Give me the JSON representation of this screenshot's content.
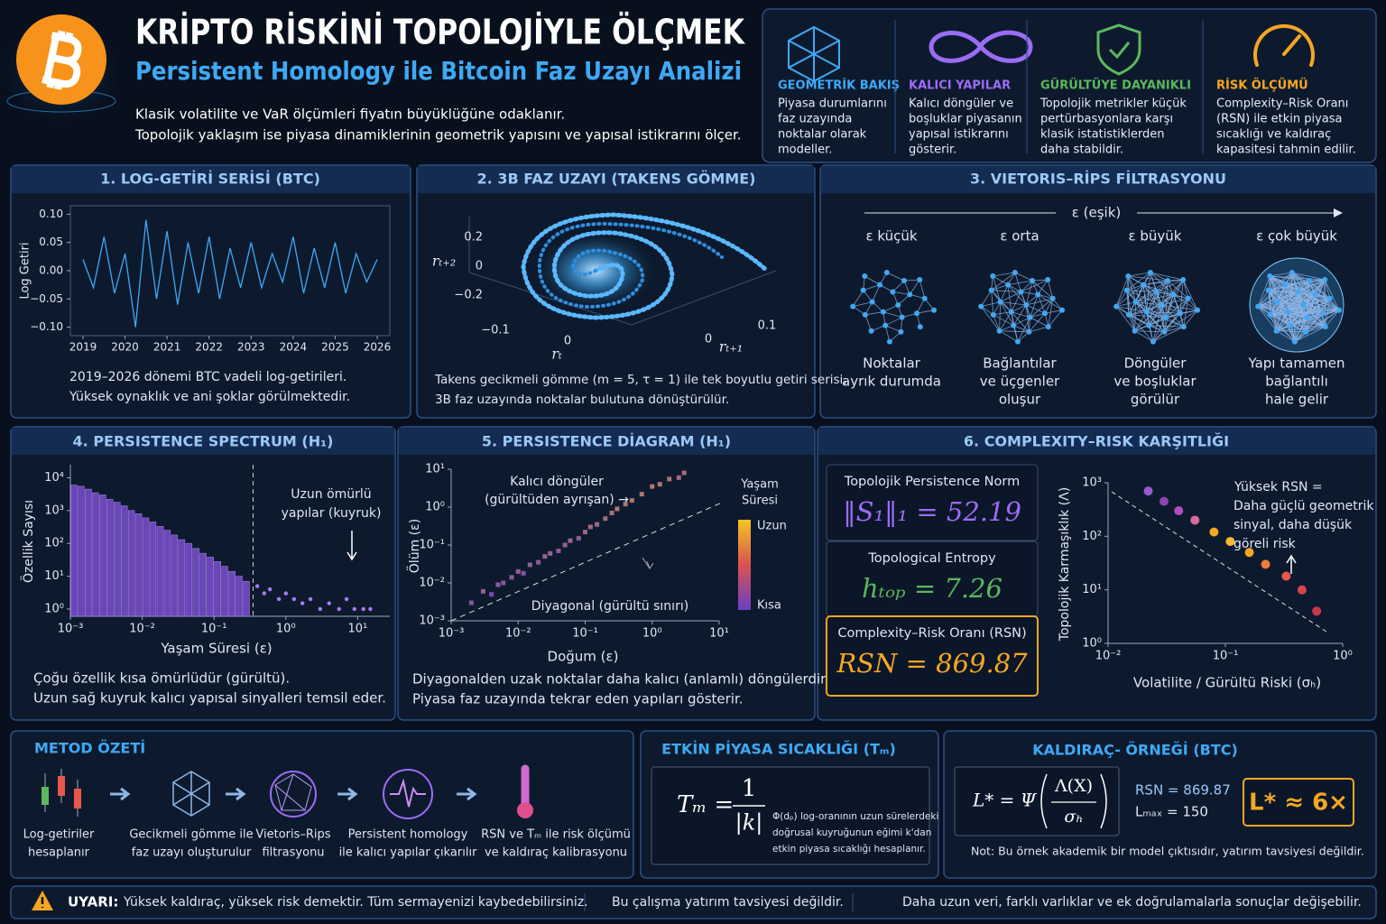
{
  "header": {
    "title": "KRİPTO RİSKİNİ TOPOLOJİYLE ÖLÇMEK",
    "subtitle": "Persistent Homology ile Bitcoin Faz Uzayı Analizi",
    "description": [
      "Klasik volatilite ve VaR ölçümleri fiyatın büyüklüğüne odaklanır.",
      "Topolojik yaklaşım ise piyasa dinamiklerinin geometrik yapısını ve yapısal istikrarını ölçer."
    ]
  },
  "features": [
    {
      "title": "GEOMETRİK BAKIŞ",
      "color": "#3fa9f5",
      "lines": [
        "Piyasa durumlarını",
        "faz uzayında",
        "noktalar olarak",
        "modeller."
      ]
    },
    {
      "title": "KALICI YAPILAR",
      "color": "#9b6cf6",
      "lines": [
        "Kalıcı döngüler ve",
        "boşluklar piyasanın",
        "yapısal istikrarını",
        "gösterir."
      ]
    },
    {
      "title": "GÜRÜLTÜYE DAYANIKLI",
      "color": "#5cb85c",
      "lines": [
        "Topolojik metrikler küçük",
        "pertürbasyonlara karşı",
        "klasik istatistiklerden",
        "daha stabildir."
      ]
    },
    {
      "title": "RİSK ÖLÇÜMÜ",
      "color": "#f5a623",
      "lines": [
        "Complexity–Risk Oranı",
        "(RSN) ile etkin piyasa",
        "sıcaklığı ve kaldıraç",
        "kapasitesi tahmin edilir."
      ]
    }
  ],
  "log_returns": {
    "type": "line",
    "title": "1. LOG-GETİRİ SERİSİ (BTC)",
    "y_label": "Log Getiri",
    "color": "#3fa9f5",
    "xlim": [
      2018.7,
      2026.3
    ],
    "xticks": [
      2019,
      2020,
      2021,
      2022,
      2023,
      2024,
      2025,
      2026
    ],
    "ylim": [
      -0.115,
      0.115
    ],
    "yticks": [
      {
        "value": 0.1,
        "label": "0.10"
      },
      {
        "value": 0.05,
        "label": "0.05"
      },
      {
        "value": 0,
        "label": "0.00"
      },
      {
        "value": -0.05,
        "label": "−0.05"
      },
      {
        "value": -0.1,
        "label": "−0.10"
      }
    ],
    "x": [
      2019,
      2019.25,
      2019.5,
      2019.75,
      2020,
      2020.25,
      2020.5,
      2020.75,
      2021,
      2021.25,
      2021.5,
      2021.75,
      2022,
      2022.25,
      2022.5,
      2022.75,
      2023,
      2023.25,
      2023.5,
      2023.75,
      2024,
      2024.25,
      2024.5,
      2024.75,
      2025,
      2025.25,
      2025.5,
      2025.75,
      2026
    ],
    "values": [
      0.02,
      -0.03,
      0.06,
      -0.04,
      0.03,
      -0.1,
      0.09,
      -0.05,
      0.07,
      -0.06,
      0.05,
      -0.04,
      0.06,
      -0.05,
      0.04,
      -0.03,
      0.05,
      -0.03,
      0.03,
      -0.02,
      0.06,
      -0.04,
      0.04,
      -0.03,
      0.05,
      -0.04,
      0.03,
      -0.02,
      0.02
    ],
    "caption": [
      "2019–2026 dönemi BTC vadeli log-getirileri.",
      "Yüksek oynaklık ve ani şoklar görülmektedir."
    ]
  },
  "phase_space": {
    "title": "2. 3B FAZ UZAYI (TAKENS GÖMME)",
    "z_label": "rₜ₊₂",
    "x_label": "rₜ",
    "y_label": "rₜ₊₁",
    "zticks": [
      0.2,
      0,
      {
        "value": -0.2,
        "label": "−0.2"
      }
    ],
    "xticks": [
      {
        "value": -0.1,
        "label": "−0.1"
      },
      0
    ],
    "yticks": [
      0,
      0.1
    ],
    "caption": [
      "Takens gecikmeli gömme (m = 5, τ = 1) ile tek boyutlu getiri serisi,",
      "3B faz uzayında noktalar bulutuna dönüştürülür."
    ]
  },
  "vietoris": {
    "title": "3. VIETORIS–RİPS FİLTRASYONU",
    "axis_label": "ε (eşik)",
    "stages": [
      {
        "label": "ε küçük",
        "lines": [
          "Noktalar",
          "ayrık durumda"
        ]
      },
      {
        "label": "ε orta",
        "lines": [
          "Bağlantılar",
          "ve üçgenler",
          "oluşur"
        ]
      },
      {
        "label": "ε büyük",
        "lines": [
          "Döngüler",
          "ve boşluklar",
          "görülür"
        ]
      },
      {
        "label": "ε çok büyük",
        "lines": [
          "Yapı tamamen",
          "bağlantılı",
          "hale gelir"
        ]
      }
    ]
  },
  "spectrum": {
    "type": "histogram",
    "title": "4. PERSISTENCE SPECTRUM (H₁)",
    "x_label": "Yaşam Süresi (ε)",
    "y_label": "Özellik Sayısı",
    "color": "#7b4fd0",
    "log_x": true,
    "log_y": true,
    "xlim": [
      0.001,
      28
    ],
    "ylim": [
      0.6,
      25000
    ],
    "xticks": [
      {
        "value": 0.001,
        "label": "10⁻³"
      },
      {
        "value": 0.01,
        "label": "10⁻²"
      },
      {
        "value": 0.1,
        "label": "10⁻¹"
      },
      {
        "value": 1,
        "label": "10⁰"
      },
      {
        "value": 10,
        "label": "10¹"
      }
    ],
    "yticks": [
      {
        "value": 1,
        "label": "10⁰"
      },
      {
        "value": 10,
        "label": "10¹"
      },
      {
        "value": 100,
        "label": "10²"
      },
      {
        "value": 1000,
        "label": "10³"
      },
      {
        "value": 10000,
        "label": "10⁴"
      }
    ],
    "bins": [
      0.001,
      0.00126,
      0.00158,
      0.002,
      0.00251,
      0.00316,
      0.00398,
      0.00501,
      0.00631,
      0.00794,
      0.01,
      0.0126,
      0.0158,
      0.02,
      0.0251,
      0.0316,
      0.0398,
      0.0501,
      0.0631,
      0.0794,
      0.1,
      0.126,
      0.158,
      0.2,
      0.251,
      0.316
    ],
    "counts": [
      6000,
      5500,
      4500,
      3500,
      3000,
      2200,
      1800,
      1400,
      1000,
      800,
      600,
      450,
      330,
      250,
      180,
      130,
      100,
      70,
      50,
      38,
      28,
      20,
      14,
      10,
      7
    ],
    "threshold": 0.35,
    "tail": {
      "x": [
        0.4,
        0.5,
        0.6,
        0.8,
        1,
        1.3,
        1.7,
        2.2,
        3,
        4,
        5.5,
        7,
        9,
        12,
        15
      ],
      "y": [
        5,
        3,
        4,
        2,
        3,
        2,
        1.5,
        2,
        1,
        1.5,
        1,
        2,
        1,
        1,
        1
      ]
    },
    "annotation": [
      "Uzun ömürlü",
      "yapılar (kuyruk)"
    ],
    "caption": [
      "Çoğu özellik kısa ömürlüdür (gürültü).",
      "Uzun sağ kuyruk kalıcı yapısal sinyalleri temsil eder."
    ]
  },
  "diagram": {
    "type": "scatter",
    "title": "5. PERSISTENCE DİAGRAM (H₁)",
    "x_label": "Doğum (ε)",
    "y_label": "Ölüm (ε)",
    "log_x": true,
    "log_y": true,
    "xlim": [
      0.001,
      10
    ],
    "ylim": [
      0.001,
      10
    ],
    "xticks": [
      {
        "value": 0.001,
        "label": "10⁻³"
      },
      {
        "value": 0.01,
        "label": "10⁻²"
      },
      {
        "value": 0.1,
        "label": "10⁻¹"
      },
      {
        "value": 1,
        "label": "10⁰"
      },
      {
        "value": 10,
        "label": "10¹"
      }
    ],
    "yticks": [
      {
        "value": 0.001,
        "label": "10⁻³"
      },
      {
        "value": 0.01,
        "label": "10⁻²"
      },
      {
        "value": 0.1,
        "label": "10⁻¹"
      },
      {
        "value": 1,
        "label": "10⁰"
      },
      {
        "value": 10,
        "label": "10¹"
      }
    ],
    "births": [
      0.002,
      0.003,
      0.004,
      0.005,
      0.006,
      0.008,
      0.01,
      0.012,
      0.015,
      0.02,
      0.025,
      0.03,
      0.04,
      0.05,
      0.06,
      0.08,
      0.1,
      0.12,
      0.15,
      0.2,
      0.25,
      0.3,
      0.4,
      0.5,
      0.7,
      1,
      1.3,
      1.8,
      2.5,
      3
    ],
    "deaths": [
      0.003,
      0.006,
      0.005,
      0.009,
      0.01,
      0.014,
      0.02,
      0.018,
      0.03,
      0.035,
      0.05,
      0.06,
      0.07,
      0.1,
      0.13,
      0.15,
      0.22,
      0.3,
      0.35,
      0.5,
      0.7,
      0.9,
      1.2,
      1.5,
      2.2,
      3.5,
      4,
      5.5,
      6,
      8
    ],
    "colors": [
      "#6a3fc4",
      "#f5a623"
    ],
    "annotation": [
      "Kalıcı döngüler",
      "(gürültüden ayrışan) →"
    ],
    "diagonal_label": "Diyagonal (gürültü sınırı)",
    "colorbar": {
      "title": [
        "Yaşam",
        "Süresi"
      ],
      "high": "Uzun",
      "low": "Kısa"
    },
    "caption": [
      "Diyagonalden uzak noktalar daha kalıcı (anlamlı) döngülerdir.",
      "Piyasa faz uzayında tekrar eden yapıları gösterir."
    ]
  },
  "complexity": {
    "type": "scatter",
    "title": "6. COMPLEXITY–RISK KARŞITLIĞI",
    "metrics": [
      {
        "label": "Topolojik Persistence Norm",
        "value": "‖S₁‖₁ = 52.19",
        "color": "#9b6cf6"
      },
      {
        "label": "Topological Entropy",
        "value": "hₜₒₚ = 7.26",
        "color": "#5cb85c"
      },
      {
        "label": "Complexity–Risk Oranı (RSN)",
        "value": "RSN = 869.87",
        "color": "#f5a623"
      }
    ],
    "x_label": "Volatilite / Gürültü Riski (σₕ)",
    "y_label": "Topolojik Karmaşıklık (Λ)",
    "log_x": true,
    "log_y": true,
    "xlim": [
      0.01,
      1
    ],
    "ylim": [
      1,
      1000
    ],
    "xticks": [
      {
        "value": 0.01,
        "label": "10⁻²"
      },
      {
        "value": 0.1,
        "label": "10⁻¹"
      },
      {
        "value": 1,
        "label": "10⁰"
      }
    ],
    "yticks": [
      {
        "value": 1,
        "label": "10⁰"
      },
      {
        "value": 10,
        "label": "10¹"
      },
      {
        "value": 100,
        "label": "10²"
      },
      {
        "value": 1000,
        "label": "10³"
      }
    ],
    "x": [
      0.022,
      0.03,
      0.04,
      0.055,
      0.08,
      0.11,
      0.16,
      0.22,
      0.33,
      0.45,
      0.6
    ],
    "y": [
      700,
      450,
      300,
      200,
      120,
      80,
      50,
      30,
      18,
      10,
      4
    ],
    "point_colors": [
      "#9b59d0",
      "#8e44ad",
      "#b04fc2",
      "#d96b9a",
      "#f5a623",
      "#f7b733",
      "#f5a623",
      "#ef7c3a",
      "#e8584a",
      "#d9434f",
      "#c8374e"
    ],
    "annotation": [
      "Yüksek RSN =",
      "Daha güçlü geometrik",
      "sinyal, daha düşük",
      "göreli risk"
    ]
  },
  "method": {
    "title": "METOD ÖZETİ",
    "steps": [
      [
        "Log-getiriler",
        "hesaplanır"
      ],
      [
        "Gecikmeli gömme ile",
        "faz uzayı oluşturulur"
      ],
      [
        "Vietoris–Rips",
        "filtrasyonu"
      ],
      [
        "Persistent homology",
        "ile kalıcı yapılar çıkarılır"
      ],
      [
        "RSN ve Tₘ ile risk ölçümü",
        "ve kaldıraç kalibrasyonu"
      ]
    ]
  },
  "temperature": {
    "title": "ETKİN PİYASA SICAKLIĞI (Tₘ)",
    "lhs": "Tₘ =",
    "numerator": "1",
    "denominator": "|k|",
    "note": [
      "Φ(dₚ) log-oranının uzun sürelerdeki",
      "doğrusal kuyruğunun eğimi k'dan",
      "etkin piyasa sıcaklığı hesaplanır."
    ]
  },
  "leverage": {
    "title": "KALDIRAÇ- ÖRNEĞİ (BTC)",
    "lhs": "L* = Ψ",
    "numerator": "Λ(X)",
    "denominator": "σₕ",
    "params": [
      "RSN = 869.87",
      "Lₘₐₓ = 150"
    ],
    "result": "L* ≈ 6×",
    "note": "Not: Bu örnek akademik bir model çıktısıdır, yatırım tavsiyesi değildir."
  },
  "warning": {
    "label": "UYARI:",
    "texts": [
      "Yüksek kaldıraç, yüksek risk demektir. Tüm sermayenizi kaybedebilirsiniz.",
      "Bu çalışma yatırım tavsiyesi değildir.",
      "Daha uzun veri, farklı varlıklar ve ek doğrulamalarla sonuçlar değişebilir."
    ]
  }
}
